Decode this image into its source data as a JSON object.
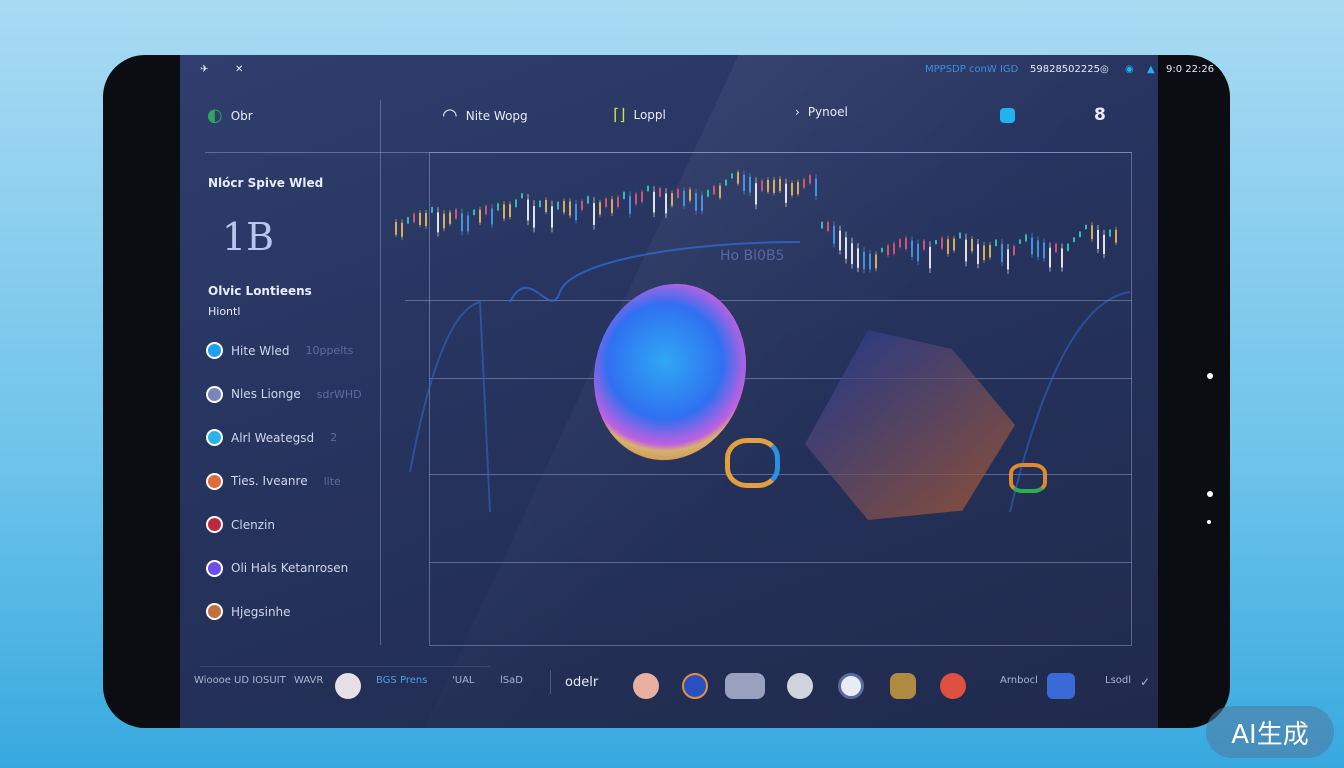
{
  "status_bar": {
    "left_icons": [
      "drone-icon",
      "close-icon"
    ],
    "right_text": "MPPSDP conW IGD",
    "number": "59828502225",
    "time": "9:0 22:26"
  },
  "nav": {
    "items": [
      {
        "label": "Obr",
        "icon": "globe-icon"
      },
      {
        "label": "Nite Wopg",
        "icon": "gauge-icon"
      },
      {
        "label": "Loppl",
        "icon": "bracket-icon"
      },
      {
        "label": "Pynoel",
        "icon": "arrow-icon"
      }
    ],
    "badge_count": "8"
  },
  "sidebar": {
    "title": "Nlócr Spive Wled",
    "logo": "1B",
    "section_title": "Olvic Lontieens",
    "section_subtitle": "Hiontl",
    "items": [
      {
        "label": "Hite Wled",
        "extra": "10ppelts",
        "color": "#1fa0f0"
      },
      {
        "label": "Nles Lionge",
        "extra": "sdrWHD",
        "color": "#7a86b8"
      },
      {
        "label": "Alrl Weategsd",
        "extra": "2",
        "color": "#29b4e8"
      },
      {
        "label": "Ties. Iveanre",
        "extra": "lite",
        "color": "#e06a3a"
      },
      {
        "label": "Clenzin",
        "extra": "",
        "color": "#c02840"
      },
      {
        "label": "Oli Hals Ketanrosen",
        "extra": "",
        "color": "#6b4df0"
      },
      {
        "label": "Hjegsinhe",
        "extra": "",
        "color": "#c0703a"
      }
    ]
  },
  "chart": {
    "watermark": "Ho Bl0B5"
  },
  "toolbar": {
    "left": [
      "Wioooe",
      "UD IOSUIT",
      "WAVR"
    ],
    "label1": "BGS Prens",
    "label2": "'UAL",
    "label3": "lSaD",
    "brand": "odelr",
    "right_label": "Arnbocl",
    "end_label": "Lsodl",
    "check": "✓"
  },
  "watermark": "AI生成",
  "colors": {
    "accent": "#22b2f0",
    "bg": "#27345f"
  }
}
